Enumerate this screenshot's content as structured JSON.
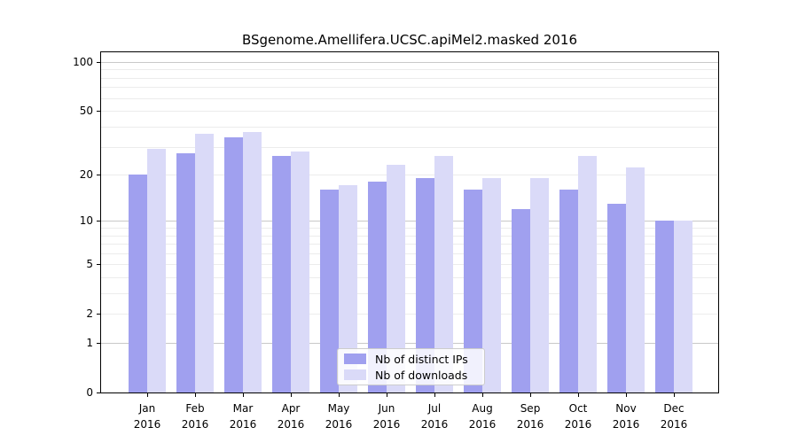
{
  "chart_data": {
    "type": "bar",
    "title": "BSgenome.Amellifera.UCSC.apiMel2.masked 2016",
    "months": [
      "Jan",
      "Feb",
      "Mar",
      "Apr",
      "May",
      "Jun",
      "Jul",
      "Aug",
      "Sep",
      "Oct",
      "Nov",
      "Dec"
    ],
    "year": "2016",
    "series": [
      {
        "name": "Nb of distinct IPs",
        "color": "#a0a0ef",
        "values": [
          20,
          27,
          34,
          26,
          16,
          18,
          19,
          16,
          12,
          16,
          13,
          10
        ]
      },
      {
        "name": "Nb of downloads",
        "color": "#dadaf8",
        "values": [
          29,
          36,
          37,
          28,
          17,
          23,
          26,
          19,
          19,
          26,
          22,
          10
        ]
      }
    ],
    "y_axis": {
      "scale": "log1p",
      "tick_values": [
        0,
        1,
        2,
        5,
        10,
        20,
        50,
        100
      ],
      "gridlines_major": [
        1,
        10,
        100
      ],
      "gridlines_minor": [
        2,
        3,
        4,
        5,
        6,
        7,
        8,
        9,
        20,
        30,
        40,
        50,
        60,
        70,
        80,
        90
      ],
      "ylim": [
        0,
        115
      ]
    },
    "legend": {
      "position": "lower-center",
      "entries": [
        "Nb of distinct IPs",
        "Nb of downloads"
      ]
    },
    "colors": {
      "bar_distinct_ips": "#a0a0ef",
      "bar_downloads": "#dadaf8",
      "grid_major": "#c9c9c9",
      "grid_minor": "#ececec",
      "axis": "#000000"
    }
  }
}
